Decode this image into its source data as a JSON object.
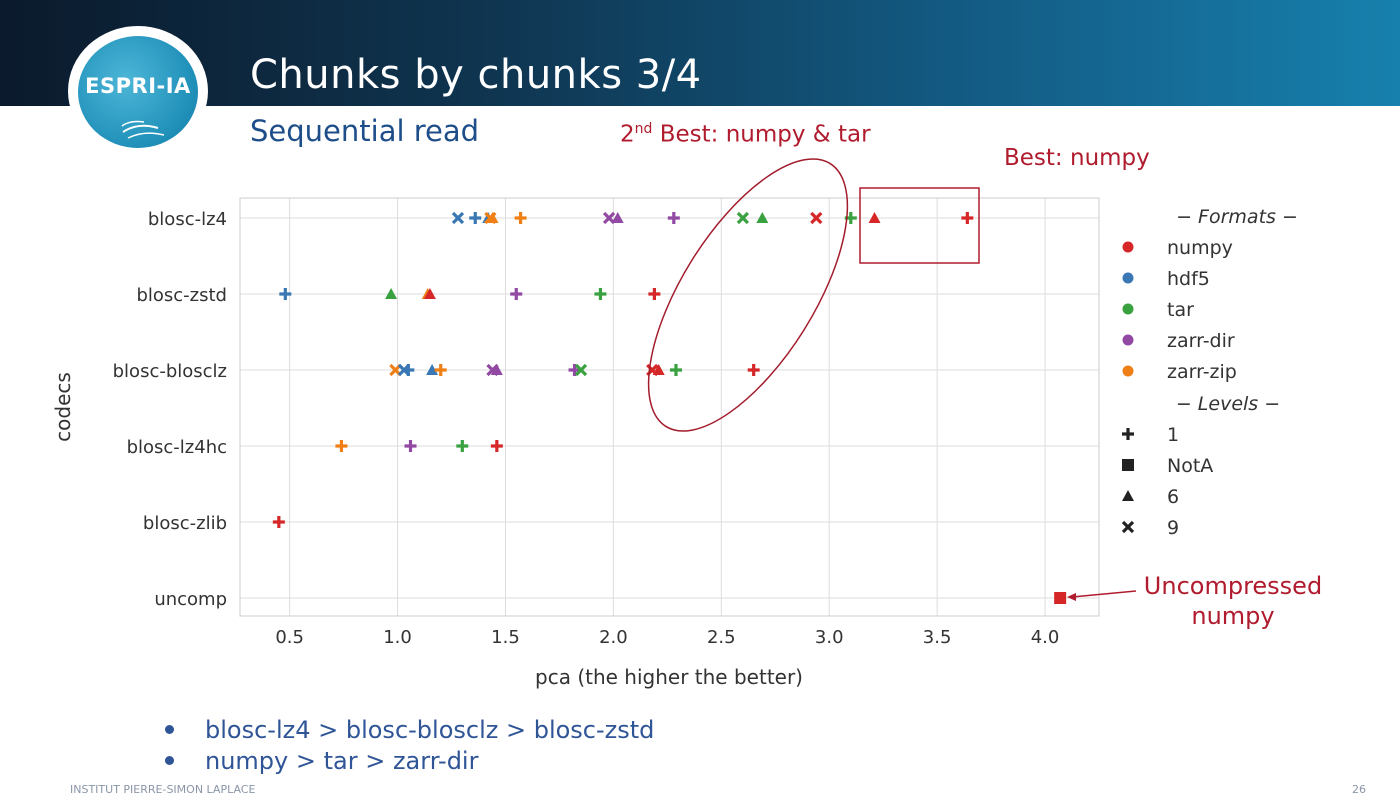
{
  "slide": {
    "title": "Chunks by chunks 3/4",
    "subtitle": "Sequential read",
    "logo_text": "ESPRI-IA",
    "footer": "INSTITUT PIERRE-SIMON LAPLACE",
    "page_number": "26",
    "bullets": [
      "blosc-lz4 > blosc-blosclz > blosc-zstd",
      "numpy > tar > zarr-dir"
    ]
  },
  "annotations": {
    "second_best_prefix": "2",
    "second_best_sup": "nd",
    "second_best_rest": " Best: numpy & tar",
    "best": "Best: numpy",
    "uncompressed_line1": "Uncompressed",
    "uncompressed_line2": "numpy"
  },
  "chart_data": {
    "type": "scatter",
    "xlabel": "pca (the higher the better)",
    "ylabel": "codecs",
    "xlim": [
      0.27,
      4.25
    ],
    "x_ticks": [
      "0.5",
      "1.0",
      "1.5",
      "2.0",
      "2.5",
      "3.0",
      "3.5",
      "4.0"
    ],
    "categories": [
      "blosc-lz4",
      "blosc-zstd",
      "blosc-blosclz",
      "blosc-lz4hc",
      "blosc-zlib",
      "uncomp"
    ],
    "grid": true,
    "legend_position": "right",
    "legend": {
      "formats_title": "Formats",
      "levels_title": "Levels",
      "formats": [
        {
          "name": "numpy",
          "color": "#d62728"
        },
        {
          "name": "hdf5",
          "color": "#3a78b5"
        },
        {
          "name": "tar",
          "color": "#3aa140"
        },
        {
          "name": "zarr-dir",
          "color": "#9249a3"
        },
        {
          "name": "zarr-zip",
          "color": "#f07f16"
        }
      ],
      "levels": [
        {
          "name": "1",
          "marker": "plus"
        },
        {
          "name": "NotA",
          "marker": "square"
        },
        {
          "name": "6",
          "marker": "triangle"
        },
        {
          "name": "9",
          "marker": "x"
        }
      ]
    },
    "points": [
      {
        "codec": "blosc-lz4",
        "x": 1.28,
        "format": "hdf5",
        "level": "9"
      },
      {
        "codec": "blosc-lz4",
        "x": 1.36,
        "format": "hdf5",
        "level": "1"
      },
      {
        "codec": "blosc-lz4",
        "x": 1.42,
        "format": "hdf5",
        "level": "6"
      },
      {
        "codec": "blosc-lz4",
        "x": 1.43,
        "format": "zarr-zip",
        "level": "9"
      },
      {
        "codec": "blosc-lz4",
        "x": 1.44,
        "format": "zarr-zip",
        "level": "6"
      },
      {
        "codec": "blosc-lz4",
        "x": 1.57,
        "format": "zarr-zip",
        "level": "1"
      },
      {
        "codec": "blosc-lz4",
        "x": 1.98,
        "format": "zarr-dir",
        "level": "9"
      },
      {
        "codec": "blosc-lz4",
        "x": 2.02,
        "format": "zarr-dir",
        "level": "6"
      },
      {
        "codec": "blosc-lz4",
        "x": 2.28,
        "format": "zarr-dir",
        "level": "1"
      },
      {
        "codec": "blosc-lz4",
        "x": 2.6,
        "format": "tar",
        "level": "9"
      },
      {
        "codec": "blosc-lz4",
        "x": 2.69,
        "format": "tar",
        "level": "6"
      },
      {
        "codec": "blosc-lz4",
        "x": 2.94,
        "format": "numpy",
        "level": "9"
      },
      {
        "codec": "blosc-lz4",
        "x": 3.1,
        "format": "tar",
        "level": "1"
      },
      {
        "codec": "blosc-lz4",
        "x": 3.21,
        "format": "numpy",
        "level": "6"
      },
      {
        "codec": "blosc-lz4",
        "x": 3.64,
        "format": "numpy",
        "level": "1"
      },
      {
        "codec": "blosc-zstd",
        "x": 0.48,
        "format": "hdf5",
        "level": "1"
      },
      {
        "codec": "blosc-zstd",
        "x": 0.97,
        "format": "tar",
        "level": "6"
      },
      {
        "codec": "blosc-zstd",
        "x": 1.14,
        "format": "zarr-zip",
        "level": "6"
      },
      {
        "codec": "blosc-zstd",
        "x": 1.15,
        "format": "numpy",
        "level": "6"
      },
      {
        "codec": "blosc-zstd",
        "x": 1.55,
        "format": "zarr-dir",
        "level": "1"
      },
      {
        "codec": "blosc-zstd",
        "x": 1.94,
        "format": "tar",
        "level": "1"
      },
      {
        "codec": "blosc-zstd",
        "x": 2.19,
        "format": "numpy",
        "level": "1"
      },
      {
        "codec": "blosc-blosclz",
        "x": 0.99,
        "format": "zarr-zip",
        "level": "9"
      },
      {
        "codec": "blosc-blosclz",
        "x": 1.03,
        "format": "hdf5",
        "level": "9"
      },
      {
        "codec": "blosc-blosclz",
        "x": 1.05,
        "format": "hdf5",
        "level": "1"
      },
      {
        "codec": "blosc-blosclz",
        "x": 1.16,
        "format": "hdf5",
        "level": "6"
      },
      {
        "codec": "blosc-blosclz",
        "x": 1.2,
        "format": "zarr-zip",
        "level": "1"
      },
      {
        "codec": "blosc-blosclz",
        "x": 1.44,
        "format": "zarr-dir",
        "level": "9"
      },
      {
        "codec": "blosc-blosclz",
        "x": 1.46,
        "format": "zarr-dir",
        "level": "6"
      },
      {
        "codec": "blosc-blosclz",
        "x": 1.82,
        "format": "zarr-dir",
        "level": "1"
      },
      {
        "codec": "blosc-blosclz",
        "x": 1.85,
        "format": "tar",
        "level": "9"
      },
      {
        "codec": "blosc-blosclz",
        "x": 2.18,
        "format": "numpy",
        "level": "9"
      },
      {
        "codec": "blosc-blosclz",
        "x": 2.21,
        "format": "numpy",
        "level": "6"
      },
      {
        "codec": "blosc-blosclz",
        "x": 2.29,
        "format": "tar",
        "level": "1"
      },
      {
        "codec": "blosc-blosclz",
        "x": 2.65,
        "format": "numpy",
        "level": "1"
      },
      {
        "codec": "blosc-lz4hc",
        "x": 0.74,
        "format": "zarr-zip",
        "level": "1"
      },
      {
        "codec": "blosc-lz4hc",
        "x": 1.06,
        "format": "zarr-dir",
        "level": "1"
      },
      {
        "codec": "blosc-lz4hc",
        "x": 1.3,
        "format": "tar",
        "level": "1"
      },
      {
        "codec": "blosc-lz4hc",
        "x": 1.46,
        "format": "numpy",
        "level": "1"
      },
      {
        "codec": "blosc-zlib",
        "x": 0.45,
        "format": "numpy",
        "level": "1"
      },
      {
        "codec": "uncomp",
        "x": 4.07,
        "format": "numpy",
        "level": "NotA"
      }
    ]
  }
}
